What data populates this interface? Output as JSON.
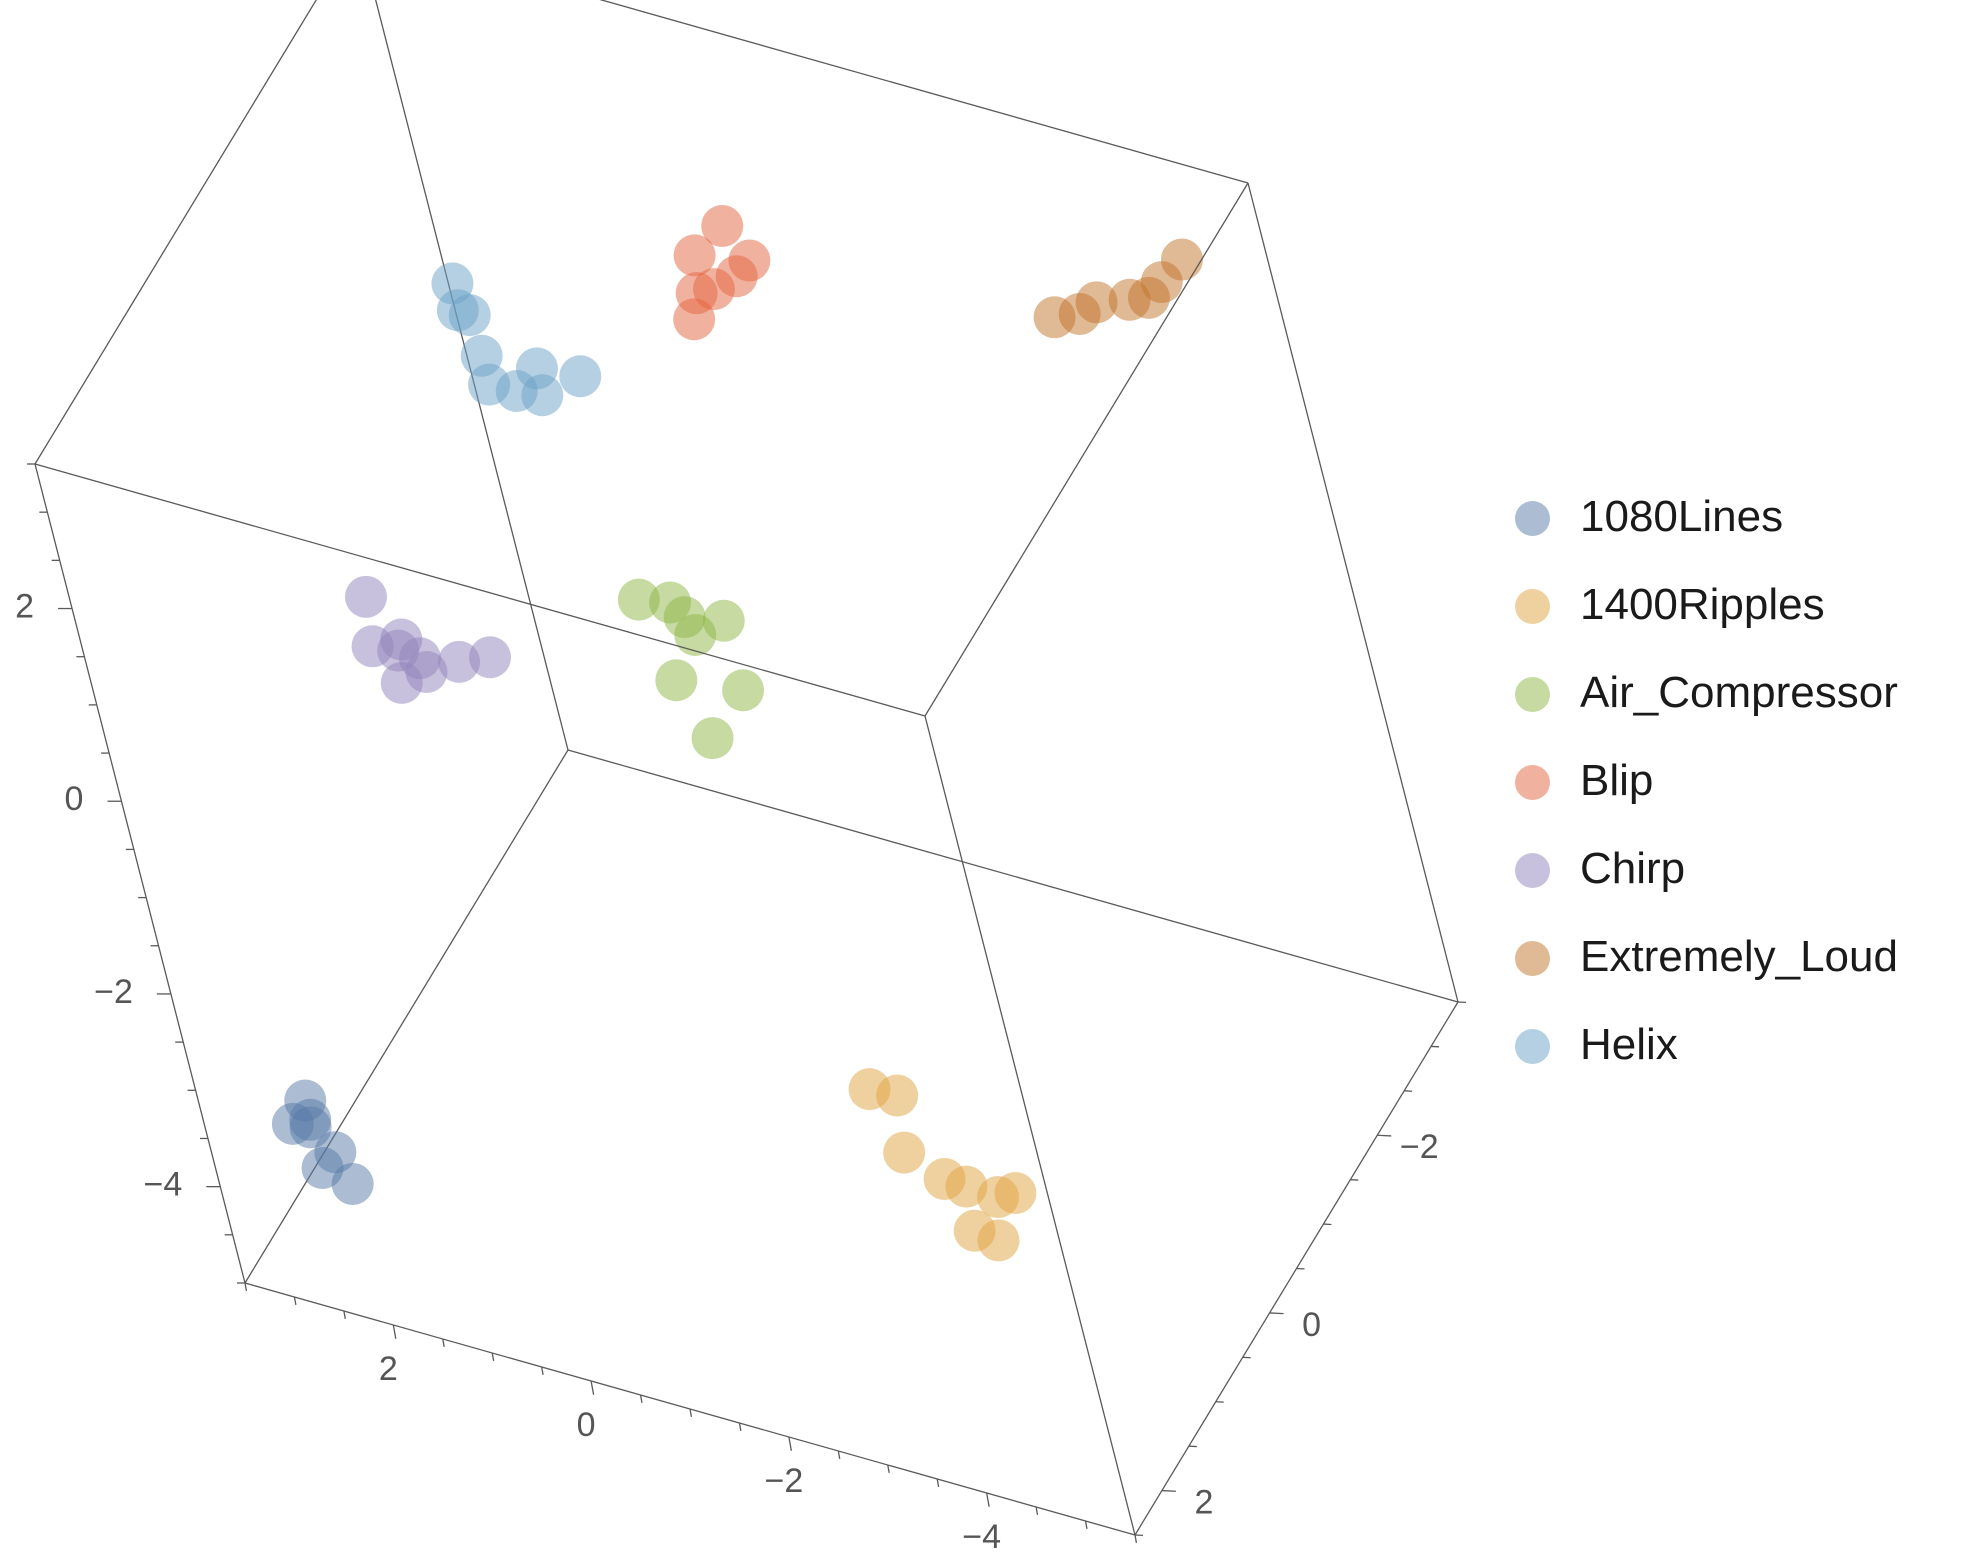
{
  "chart_data": {
    "type": "scatter",
    "dimensions": 3,
    "title": "",
    "axes": {
      "x": {
        "label": "",
        "range": [
          -5.5,
          3.5
        ],
        "ticks": [
          -4,
          -2,
          0,
          2
        ]
      },
      "y": {
        "label": "",
        "range": [
          -3.5,
          2.5
        ],
        "ticks": [
          -2,
          0,
          2
        ]
      },
      "z": {
        "label": "",
        "range": [
          -5,
          3.5
        ],
        "ticks": [
          -4,
          -2,
          0,
          2
        ]
      }
    },
    "legend_position": "right",
    "series": [
      {
        "name": "1080Lines",
        "color": "#5779a8",
        "points": [
          [
            2.5,
            2.3,
            -3.0
          ],
          [
            2.7,
            2.3,
            -3.3
          ],
          [
            2.4,
            2.2,
            -3.6
          ],
          [
            2.3,
            2.2,
            -3.9
          ],
          [
            2.5,
            2.3,
            -3.7
          ],
          [
            2.6,
            2.2,
            -3.4
          ],
          [
            2.5,
            2.3,
            -3.2
          ]
        ]
      },
      {
        "name": "1400Ripples",
        "color": "#dfa340",
        "points": [
          [
            -3.3,
            1.5,
            -2.0
          ],
          [
            -3.1,
            1.6,
            -1.9
          ],
          [
            -3.8,
            1.5,
            -2.8
          ],
          [
            -3.3,
            1.6,
            -2.5
          ],
          [
            -3.5,
            1.4,
            -2.9
          ],
          [
            -4.2,
            1.6,
            -2.7
          ],
          [
            -4.4,
            1.6,
            -2.6
          ],
          [
            -4.0,
            1.5,
            -3.3
          ],
          [
            -3.6,
            1.3,
            -3.5
          ]
        ]
      },
      {
        "name": "Air_Compressor",
        "color": "#8db545",
        "points": [
          [
            -0.8,
            0.0,
            0.2
          ],
          [
            -0.9,
            -0.2,
            0.7
          ],
          [
            -1.3,
            0.2,
            1.0
          ],
          [
            -0.7,
            0.1,
            1.1
          ],
          [
            -1.2,
            0.3,
            1.4
          ],
          [
            -1.5,
            0.0,
            0.3
          ],
          [
            -1.4,
            -0.1,
            0.9
          ],
          [
            -1.2,
            0.2,
            -0.1
          ]
        ]
      },
      {
        "name": "Blip",
        "color": "#e4633f",
        "points": [
          [
            -0.5,
            -1.8,
            2.2
          ],
          [
            -0.6,
            -1.8,
            2.5
          ],
          [
            -0.6,
            -1.9,
            2.8
          ],
          [
            -0.9,
            -2.0,
            3.1
          ],
          [
            -1.1,
            -2.0,
            2.8
          ],
          [
            -1.0,
            -1.9,
            2.7
          ],
          [
            -0.8,
            -1.8,
            2.6
          ]
        ]
      },
      {
        "name": "Chirp",
        "color": "#9184bb",
        "points": [
          [
            2.0,
            0.5,
            0.2
          ],
          [
            1.9,
            0.3,
            0.0
          ],
          [
            1.6,
            0.4,
            0.1
          ],
          [
            1.4,
            0.6,
            0.2
          ],
          [
            1.1,
            0.5,
            0.3
          ],
          [
            1.0,
            0.2,
            0.1
          ],
          [
            1.7,
            0.6,
            0.0
          ],
          [
            2.1,
            0.3,
            0.5
          ],
          [
            1.5,
            0.7,
            0.6
          ]
        ]
      },
      {
        "name": "Extremely_Loud",
        "color": "#c2742b",
        "points": [
          [
            -3.6,
            -2.8,
            2.2
          ],
          [
            -3.8,
            -2.9,
            2.2
          ],
          [
            -4.3,
            -3.0,
            2.4
          ],
          [
            -4.1,
            -2.8,
            2.5
          ],
          [
            -4.7,
            -3.0,
            2.7
          ],
          [
            -4.6,
            -2.9,
            2.6
          ],
          [
            -4.9,
            -3.1,
            2.9
          ]
        ]
      },
      {
        "name": "Helix",
        "color": "#6ca1c7",
        "points": [
          [
            1.2,
            -0.8,
            3.0
          ],
          [
            1.1,
            -0.8,
            2.7
          ],
          [
            1.3,
            -0.9,
            2.6
          ],
          [
            1.0,
            -0.7,
            2.4
          ],
          [
            1.0,
            -0.7,
            2.1
          ],
          [
            0.8,
            -0.8,
            2.0
          ],
          [
            0.6,
            -0.9,
            2.2
          ],
          [
            0.7,
            -1.0,
            1.8
          ],
          [
            0.4,
            -1.2,
            1.9
          ]
        ]
      }
    ]
  }
}
